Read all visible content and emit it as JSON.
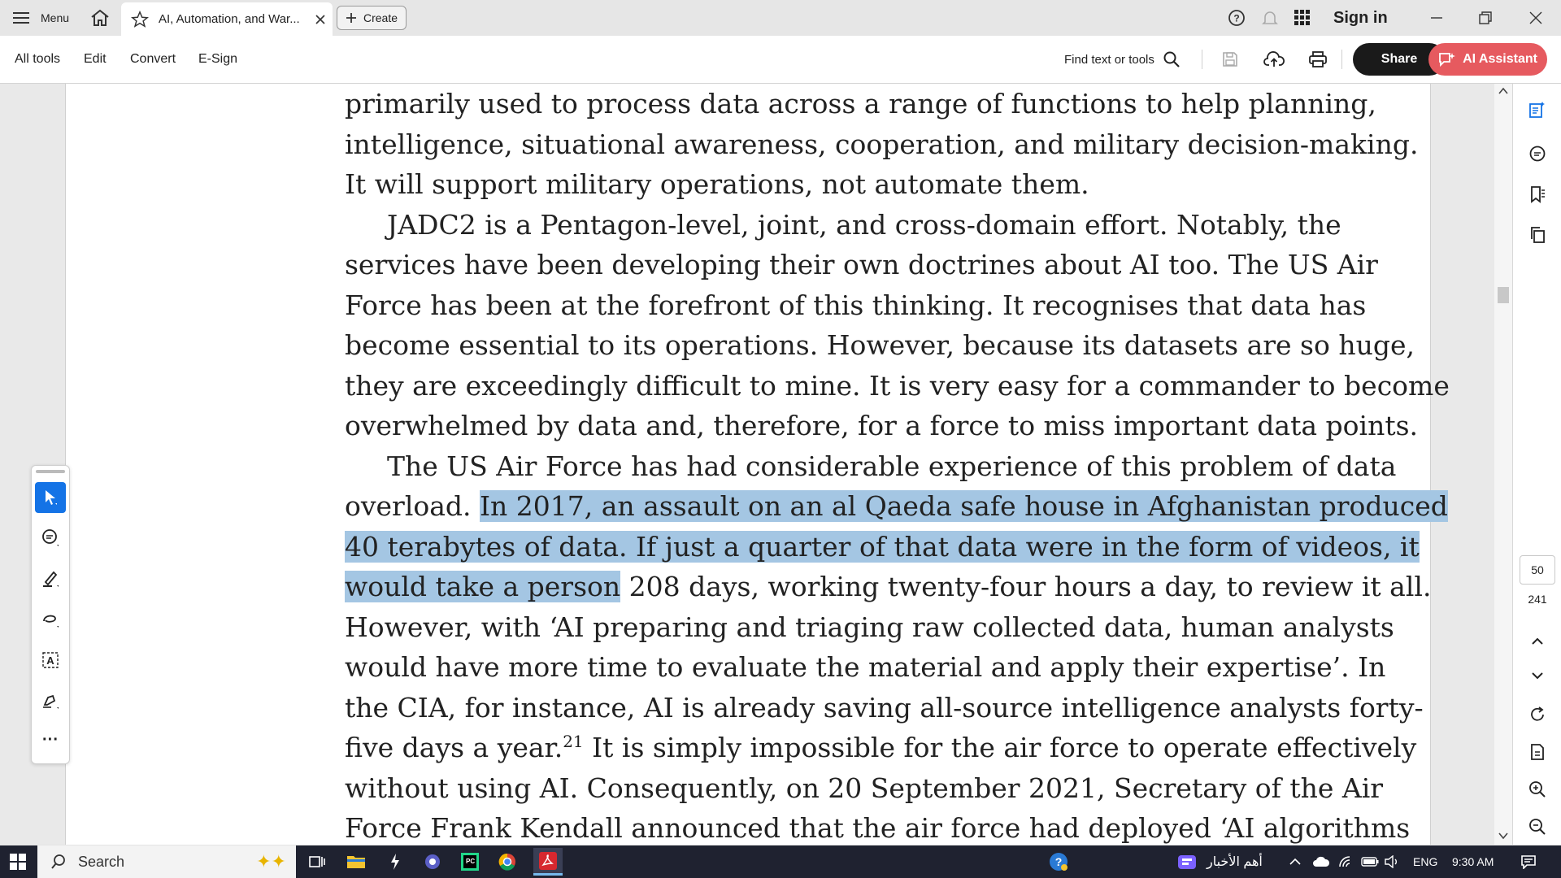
{
  "titlebar": {
    "menu_label": "Menu",
    "tab_title": "AI, Automation, and War...",
    "create_label": "Create",
    "sign_in": "Sign in"
  },
  "toolbar": {
    "menu": [
      "All tools",
      "Edit",
      "Convert",
      "E-Sign"
    ],
    "find_placeholder": "Find text or tools",
    "share_label": "Share",
    "ai_label": "AI Assistant"
  },
  "document": {
    "lines": [
      {
        "pre": "primarily used to process data across a range of functions to help planning,",
        "hl": "",
        "post": ""
      },
      {
        "pre": "intelligence, situational awareness, cooperation, and military decision-making.",
        "hl": "",
        "post": ""
      },
      {
        "pre": "It will support military operations, not automate them.",
        "hl": "",
        "post": "",
        "last": true
      },
      {
        "pre": "JADC2 is a Pentagon-level, joint, and cross-domain effort. Notably, the",
        "hl": "",
        "post": "",
        "indent": true
      },
      {
        "pre": "services have been developing their own doctrines about AI too. The US Air",
        "hl": "",
        "post": ""
      },
      {
        "pre": "Force has been at the forefront of this thinking. It recognises that data has",
        "hl": "",
        "post": ""
      },
      {
        "pre": "become essential to its operations. However, because its datasets are so huge,",
        "hl": "",
        "post": ""
      },
      {
        "pre": "they are exceedingly difficult to mine. It is very easy for a commander to become",
        "hl": "",
        "post": ""
      },
      {
        "pre": "overwhelmed by data and, therefore, for a force to miss important data points.",
        "hl": "",
        "post": ""
      },
      {
        "pre": "The US Air Force has had considerable experience of this problem of data",
        "hl": "",
        "post": "",
        "indent": true
      },
      {
        "pre": "overload. ",
        "hl": "In 2017, an assault on an al Qaeda safe house in Afghanistan produced",
        "post": ""
      },
      {
        "pre": "",
        "hl": "40 terabytes of data. If just a quarter of that data were in the form of videos, it",
        "post": ""
      },
      {
        "pre": "",
        "hl": "would take a person",
        "post": " 208 days, working twenty-four hours a day, to review it all."
      },
      {
        "pre": "However, with ‘AI preparing and triaging raw collected data, human analysts",
        "hl": "",
        "post": ""
      },
      {
        "pre": "would have more time to evaluate the material and apply their expertise’. In",
        "hl": "",
        "post": ""
      },
      {
        "pre": "the CIA, for instance, AI is already saving all-source intelligence analysts forty-",
        "hl": "",
        "post": ""
      },
      {
        "pre": "five days a year.",
        "hl": "",
        "post": "",
        "sup": "21",
        "after": " It is simply impossible for the air force to operate effectively"
      },
      {
        "pre": "without using AI. Consequently, on 20 September 2021, Secretary of the Air",
        "hl": "",
        "post": ""
      },
      {
        "pre": "Force Frank Kendall announced that the air force had deployed ‘AI algorithms",
        "hl": "",
        "post": ""
      }
    ]
  },
  "page_nav": {
    "current_page": "50",
    "total_pages": "241"
  },
  "taskbar": {
    "search_label": "Search",
    "news_label": "أهم الأخبار",
    "language": "ENG",
    "time": "9:30 AM"
  },
  "colors": {
    "highlight": "#a4c6e3",
    "ai_button": "#e65a5f",
    "active_tool": "#1473e6"
  }
}
